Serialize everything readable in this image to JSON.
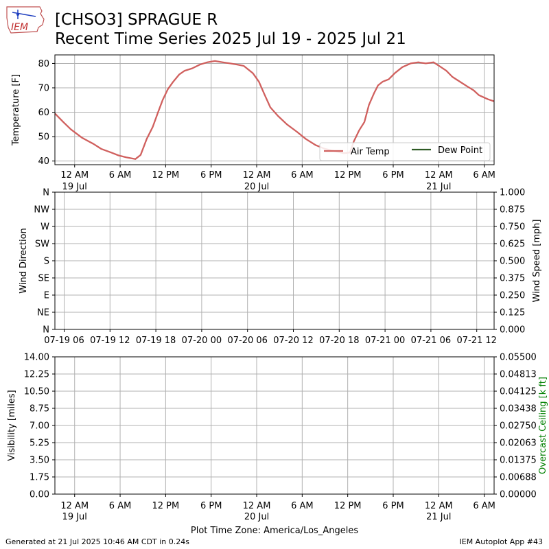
{
  "header": {
    "title": "[CHSO3] SPRAGUE R",
    "subtitle": "Recent Time Series 2025 Jul 19 - 2025 Jul 21",
    "logo_text": "IEM"
  },
  "footer": {
    "generated": "Generated at 21 Jul 2025 10:46 AM CDT in 0.24s",
    "app": "IEM Autoplot App #43"
  },
  "colors": {
    "air_temp": "#d0605e",
    "dew_point": "#2e5a24",
    "grid": "#b0b0b0",
    "ceiling_label": "#008000"
  },
  "chart_data": [
    {
      "type": "line",
      "ylabel": "Temperature [F]",
      "ylim": [
        38.5,
        83.5
      ],
      "yticks": [
        "40",
        "50",
        "60",
        "70",
        "80"
      ],
      "xlim_hours": [
        -2.6,
        55.3
      ],
      "xticks": [
        {
          "h": 0,
          "l1": "12 AM",
          "l2": "19 Jul"
        },
        {
          "h": 6,
          "l1": "6 AM",
          "l2": ""
        },
        {
          "h": 12,
          "l1": "12 PM",
          "l2": ""
        },
        {
          "h": 18,
          "l1": "6 PM",
          "l2": ""
        },
        {
          "h": 24,
          "l1": "12 AM",
          "l2": "20 Jul"
        },
        {
          "h": 30,
          "l1": "6 AM",
          "l2": ""
        },
        {
          "h": 36,
          "l1": "12 PM",
          "l2": ""
        },
        {
          "h": 42,
          "l1": "6 PM",
          "l2": ""
        },
        {
          "h": 48,
          "l1": "12 AM",
          "l2": "21 Jul"
        },
        {
          "h": 54,
          "l1": "6 AM",
          "l2": ""
        }
      ],
      "legend": {
        "position": "lower-right",
        "entries": [
          "Air Temp",
          "Dew Point"
        ]
      },
      "series": [
        {
          "name": "Air Temp",
          "points": [
            [
              -2.6,
              59.5
            ],
            [
              -1.5,
              56.0
            ],
            [
              -0.5,
              53.0
            ],
            [
              1.0,
              49.5
            ],
            [
              2.5,
              47.0
            ],
            [
              3.5,
              45.0
            ],
            [
              4.8,
              43.5
            ],
            [
              5.8,
              42.3
            ],
            [
              6.8,
              41.5
            ],
            [
              8.0,
              40.8
            ],
            [
              8.7,
              42.5
            ],
            [
              9.5,
              49.0
            ],
            [
              10.3,
              54.0
            ],
            [
              11.0,
              60.0
            ],
            [
              11.6,
              65.0
            ],
            [
              12.3,
              69.5
            ],
            [
              13.0,
              72.5
            ],
            [
              13.8,
              75.5
            ],
            [
              14.5,
              77.0
            ],
            [
              15.5,
              78.0
            ],
            [
              16.5,
              79.5
            ],
            [
              17.5,
              80.5
            ],
            [
              18.5,
              81.0
            ],
            [
              19.5,
              80.5
            ],
            [
              20.5,
              80.0
            ],
            [
              21.5,
              79.5
            ],
            [
              22.3,
              79.0
            ],
            [
              23.5,
              76.0
            ],
            [
              24.3,
              72.5
            ],
            [
              25.0,
              67.5
            ],
            [
              25.8,
              62.0
            ],
            [
              26.8,
              58.5
            ],
            [
              28.0,
              55.0
            ],
            [
              29.3,
              52.0
            ],
            [
              30.5,
              49.0
            ],
            [
              31.8,
              46.5
            ],
            [
              33.0,
              45.0
            ],
            [
              34.3,
              44.0
            ],
            [
              35.5,
              43.2
            ],
            [
              36.3,
              43.5
            ],
            [
              36.8,
              48.0
            ],
            [
              37.5,
              52.5
            ],
            [
              38.2,
              56.0
            ],
            [
              38.8,
              63.0
            ],
            [
              39.5,
              68.0
            ],
            [
              40.0,
              71.0
            ],
            [
              40.6,
              72.5
            ],
            [
              41.4,
              73.5
            ],
            [
              42.2,
              76.0
            ],
            [
              43.2,
              78.5
            ],
            [
              44.3,
              80.0
            ],
            [
              45.3,
              80.5
            ],
            [
              46.3,
              80.0
            ],
            [
              47.3,
              80.5
            ],
            [
              48.3,
              78.5
            ],
            [
              49.0,
              77.0
            ],
            [
              49.8,
              74.5
            ],
            [
              50.8,
              72.5
            ],
            [
              51.8,
              70.5
            ],
            [
              52.6,
              69.0
            ],
            [
              53.3,
              67.0
            ],
            [
              54.0,
              66.0
            ],
            [
              54.5,
              65.3
            ],
            [
              55.3,
              64.5
            ]
          ]
        },
        {
          "name": "Dew Point",
          "points": []
        }
      ]
    },
    {
      "type": "line",
      "ylabel": "Wind Direction",
      "ylabel_right": "Wind Speed [mph]",
      "yticks": [
        "N",
        "NE",
        "E",
        "SE",
        "S",
        "SW",
        "W",
        "NW",
        "N"
      ],
      "yticks_right": [
        "0.000",
        "0.125",
        "0.250",
        "0.375",
        "0.500",
        "0.625",
        "0.750",
        "0.875",
        "1.000"
      ],
      "xticks": [
        "07-19 06",
        "07-19 12",
        "07-19 18",
        "07-20 00",
        "07-20 06",
        "07-20 12",
        "07-20 18",
        "07-21 00",
        "07-21 06",
        "07-21 12"
      ],
      "series": []
    },
    {
      "type": "line",
      "ylabel": "Visibility [miles]",
      "ylabel_right": "Overcast Ceiling [k ft]",
      "yticks": [
        "0.00",
        "1.75",
        "3.50",
        "5.25",
        "7.00",
        "8.75",
        "10.50",
        "12.25",
        "14.00"
      ],
      "yticks_right": [
        "0.00000",
        "0.00688",
        "0.01375",
        "0.02063",
        "0.02750",
        "0.03438",
        "0.04125",
        "0.04813",
        "0.05500"
      ],
      "xlabel": "Plot Time Zone: America/Los_Angeles",
      "xticks": [
        {
          "h": 0,
          "l1": "12 AM",
          "l2": "19 Jul"
        },
        {
          "h": 6,
          "l1": "6 AM",
          "l2": ""
        },
        {
          "h": 12,
          "l1": "12 PM",
          "l2": ""
        },
        {
          "h": 18,
          "l1": "6 PM",
          "l2": ""
        },
        {
          "h": 24,
          "l1": "12 AM",
          "l2": "20 Jul"
        },
        {
          "h": 30,
          "l1": "6 AM",
          "l2": ""
        },
        {
          "h": 36,
          "l1": "12 PM",
          "l2": ""
        },
        {
          "h": 42,
          "l1": "6 PM",
          "l2": ""
        },
        {
          "h": 48,
          "l1": "12 AM",
          "l2": "21 Jul"
        },
        {
          "h": 54,
          "l1": "6 AM",
          "l2": ""
        }
      ],
      "series": []
    }
  ]
}
